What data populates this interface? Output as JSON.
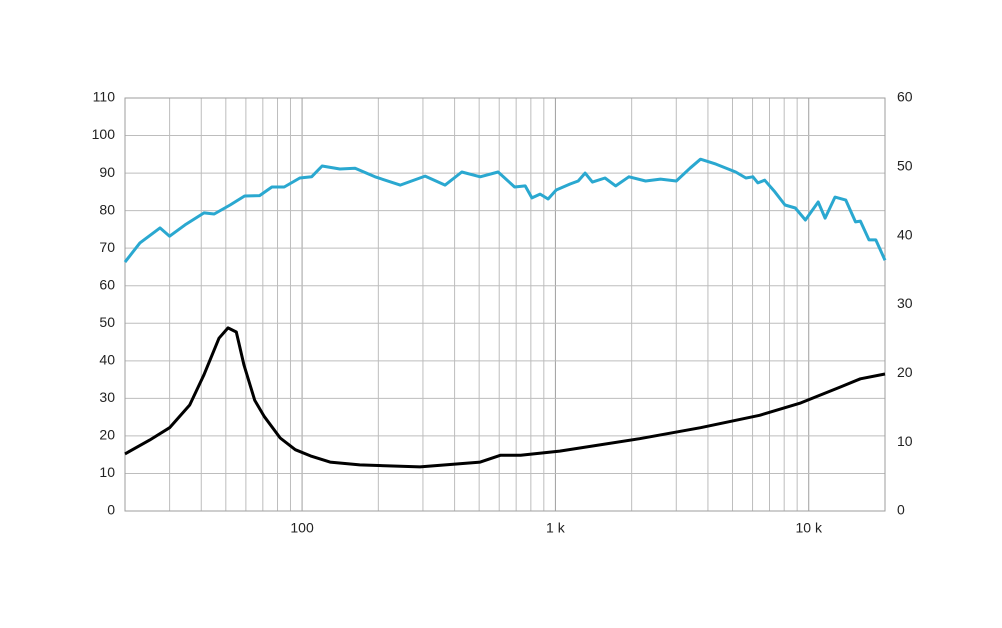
{
  "chart_data": {
    "type": "line",
    "xscale": "log",
    "xlim": [
      20,
      20000
    ],
    "xticks": [
      100,
      {
        "value": 1000,
        "label": "1 k"
      },
      {
        "value": 10000,
        "label": "10 k"
      }
    ],
    "xgrid": [
      30,
      40,
      50,
      60,
      70,
      80,
      90,
      200,
      300,
      400,
      500,
      600,
      700,
      800,
      900,
      2000,
      3000,
      4000,
      5000,
      6000,
      7000,
      8000,
      9000
    ],
    "ylim": [
      0,
      110
    ],
    "yticks": [
      0,
      10,
      20,
      30,
      40,
      50,
      60,
      70,
      80,
      90,
      100,
      110
    ],
    "y2lim": [
      0,
      60
    ],
    "y2ticks": [
      0,
      10,
      20,
      30,
      40,
      50,
      60
    ],
    "grid": true,
    "series": [
      {
        "color": "#2aa8d0",
        "x": [
          20,
          22.9,
          27.5,
          30,
          34.5,
          41,
          45,
          52,
          59.3,
          68,
          76,
          85,
          98,
          109,
          120,
          141,
          162,
          194,
          244,
          306,
          367,
          427,
          505,
          594,
          690,
          760,
          808,
          870,
          936,
          1007,
          1143,
          1230,
          1310,
          1400,
          1570,
          1730,
          1950,
          2270,
          2600,
          3000,
          3400,
          3740,
          4300,
          5150,
          5650,
          6020,
          6300,
          6700,
          7350,
          8060,
          8850,
          9700,
          10900,
          11600,
          12700,
          14000,
          15300,
          16000,
          17300,
          18400,
          20000
        ],
        "values": [
          66.3,
          71.4,
          75.4,
          73.2,
          76.2,
          79.4,
          79.1,
          81.5,
          83.9,
          84,
          86.3,
          86.3,
          88.7,
          89,
          91.9,
          91.1,
          91.3,
          89,
          86.8,
          89.2,
          86.8,
          90.3,
          89,
          90.3,
          86.3,
          86.6,
          83.4,
          84.4,
          83.1,
          85.5,
          87.1,
          87.9,
          90,
          87.6,
          88.7,
          86.6,
          89,
          87.9,
          88.4,
          87.9,
          91.3,
          93.7,
          92.4,
          90.3,
          88.7,
          89,
          87.4,
          88.1,
          85,
          81.5,
          80.7,
          77.5,
          82.3,
          78,
          83.6,
          82.8,
          77,
          77.2,
          72.2,
          72.2,
          66.8
        ]
      },
      {
        "color": "#000000",
        "axis": "y2",
        "x": [
          20,
          25,
          30,
          36,
          41,
          47,
          51,
          55,
          59,
          65,
          71,
          82,
          94,
          108,
          129,
          169,
          292,
          505,
          608,
          729,
          1040,
          2150,
          3740,
          6400,
          9300,
          13300,
          16000,
          20000
        ],
        "values": [
          8.3,
          10.3,
          12.1,
          15.4,
          19.8,
          25.1,
          26.6,
          26.0,
          21.2,
          16.1,
          13.7,
          10.6,
          8.9,
          8.0,
          7.1,
          6.7,
          6.4,
          7.1,
          8.1,
          8.1,
          8.7,
          10.5,
          12.1,
          13.9,
          15.7,
          18.0,
          19.2,
          19.9
        ]
      }
    ]
  }
}
